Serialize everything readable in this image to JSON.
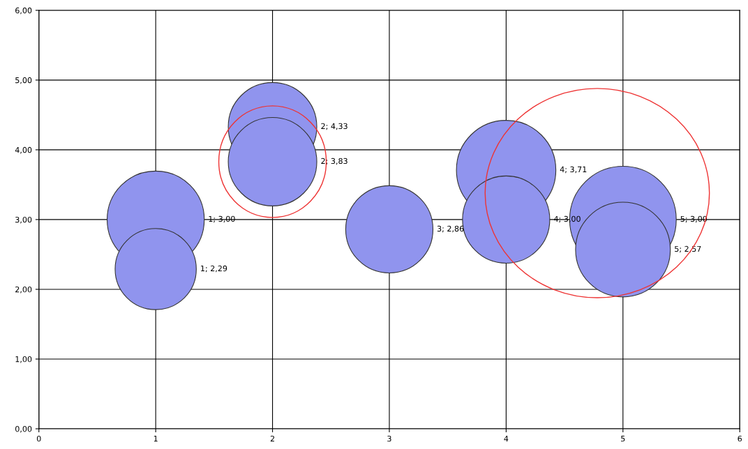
{
  "chart_data": {
    "type": "bubble",
    "x": [
      1,
      1,
      2,
      2,
      3,
      4,
      4,
      5,
      5
    ],
    "values": [
      3.0,
      2.29,
      4.33,
      3.83,
      2.86,
      3.71,
      3.0,
      3.0,
      2.57
    ],
    "sizes": [
      0.83,
      0.58,
      0.69,
      0.69,
      0.67,
      0.87,
      0.67,
      1,
      0.79
    ],
    "color": "#9094ee",
    "value_labels": [
      "1; 3,00",
      "1; 2,29",
      "2; 4,33",
      "2; 3,83",
      "3; 2,86",
      "4; 3,71",
      "4; 3,00",
      "5; 3,00",
      "5; 2,57"
    ],
    "xlim": [
      0,
      6
    ],
    "xticks": [
      0,
      1,
      2,
      3,
      4,
      5,
      6
    ],
    "ylim": [
      0,
      6
    ],
    "yticks": [
      {
        "value": 0,
        "label": "0,00"
      },
      {
        "value": 1,
        "label": "1,00"
      },
      {
        "value": 2,
        "label": "2,00"
      },
      {
        "value": 3,
        "label": "3,00"
      },
      {
        "value": 4,
        "label": "4,00"
      },
      {
        "value": 5,
        "label": "5,00"
      },
      {
        "value": 6,
        "label": "6,00"
      }
    ],
    "grid": true
  }
}
